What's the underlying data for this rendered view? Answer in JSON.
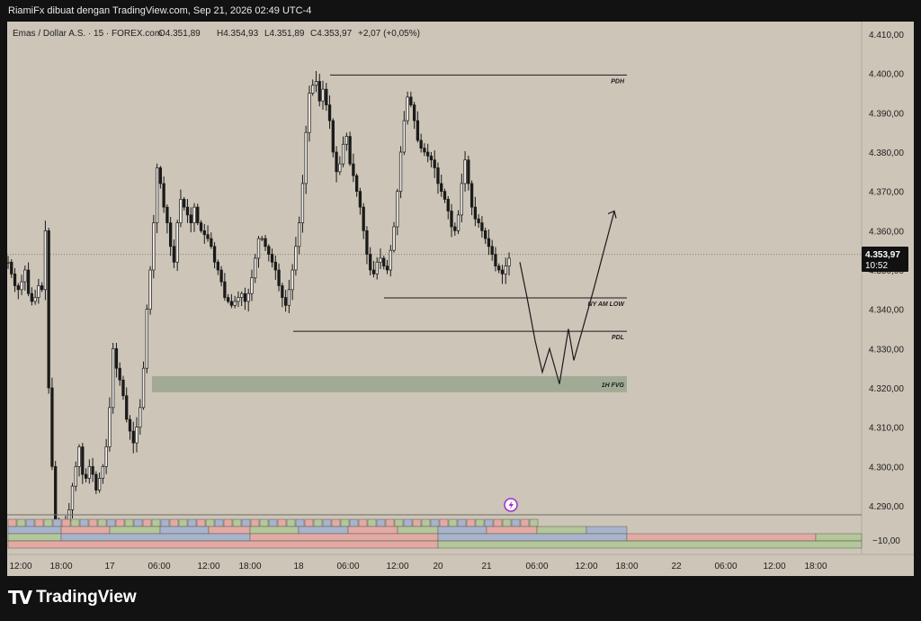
{
  "header": {
    "caption": "RiamiFx dibuat dengan TradingView.com, Sep 21, 2026 02:49 UTC-4"
  },
  "legend": {
    "symbol": "Emas / Dollar A.S. · 15 · FOREX.com",
    "open": "O4.351,89",
    "high": "H4.354,93",
    "low": "L4.351,89",
    "close": "C4.353,97",
    "change": "+2,07 (+0,05%)"
  },
  "price_tag": {
    "price": "4.353,97",
    "countdown": "10:52"
  },
  "lower_pane": {
    "axis_label": "−10,00"
  },
  "footer": {
    "brand": "TradingView",
    "logo_mark": "TV"
  },
  "colors": {
    "background": "#cdc5b8",
    "candle": "#1a1a1a",
    "fvg_zone": "#9aa58f",
    "frame": "#121212",
    "pink_bar": "#e3aaa4",
    "green_bar": "#b4c79a",
    "blue_bar": "#a8b3cc"
  },
  "chart_data": {
    "type": "candlestick",
    "symbol": "Emas / Dollar A.S.",
    "timeframe": "15",
    "y_axis": {
      "min": 4288,
      "max": 4412,
      "ticks": [
        "4.410,00",
        "4.400,00",
        "4.390,00",
        "4.380,00",
        "4.370,00",
        "4.360,00",
        "4.350,00",
        "4.340,00",
        "4.330,00",
        "4.320,00",
        "4.310,00",
        "4.300,00",
        "4.290,00"
      ]
    },
    "x_axis": {
      "ticks": [
        "12:00",
        "18:00",
        "17",
        "06:00",
        "12:00",
        "18:00",
        "18",
        "06:00",
        "12:00",
        "20",
        "21",
        "06:00",
        "12:00",
        "18:00",
        "22",
        "06:00",
        "12:00",
        "18:00"
      ]
    },
    "last_price": 4353.97,
    "levels": [
      {
        "label": "PDH",
        "price": 4399.6
      },
      {
        "label": "NY AM LOW",
        "price": 4342.9
      },
      {
        "label": "PDL",
        "price": 4334.4
      }
    ],
    "zones": [
      {
        "label": "1H FVG",
        "from": 4318.9,
        "to": 4323.0
      }
    ],
    "projection": [
      4352,
      4343,
      4332,
      4324,
      4330,
      4321,
      4335,
      4327,
      4345,
      4365
    ],
    "close_path": [
      4352,
      4349,
      4346,
      4345,
      4347,
      4350,
      4344,
      4342,
      4343,
      4346,
      4345,
      4360,
      4320,
      4300,
      4285,
      4284,
      4283,
      4286,
      4289,
      4295,
      4300,
      4305,
      4298,
      4297,
      4300,
      4298,
      4294,
      4297,
      4300,
      4305,
      4315,
      4330,
      4325,
      4322,
      4318,
      4312,
      4309,
      4306,
      4310,
      4315,
      4325,
      4340,
      4350,
      4362,
      4376,
      4372,
      4366,
      4362,
      4356,
      4352,
      4362,
      4368,
      4366,
      4364,
      4362,
      4366,
      4362,
      4360,
      4359,
      4358,
      4356,
      4352,
      4350,
      4347,
      4343,
      4342,
      4341,
      4342,
      4343,
      4344,
      4342,
      4344,
      4348,
      4353,
      4358,
      4358,
      4356,
      4354,
      4352,
      4350,
      4346,
      4343,
      4341,
      4345,
      4350,
      4356,
      4362,
      4372,
      4385,
      4395,
      4397,
      4398,
      4393,
      4396,
      4392,
      4388,
      4380,
      4375,
      4377,
      4382,
      4384,
      4377,
      4374,
      4370,
      4366,
      4360,
      4354,
      4350,
      4349,
      4352,
      4353,
      4351,
      4350,
      4355,
      4361,
      4370,
      4380,
      4388,
      4394,
      4392,
      4388,
      4383,
      4381,
      4380,
      4379,
      4378,
      4376,
      4372,
      4370,
      4368,
      4365,
      4361,
      4360,
      4364,
      4372,
      4378,
      4372,
      4366,
      4363,
      4362,
      4360,
      4358,
      4356,
      4354,
      4351,
      4350,
      4349,
      4351,
      4353
    ]
  }
}
